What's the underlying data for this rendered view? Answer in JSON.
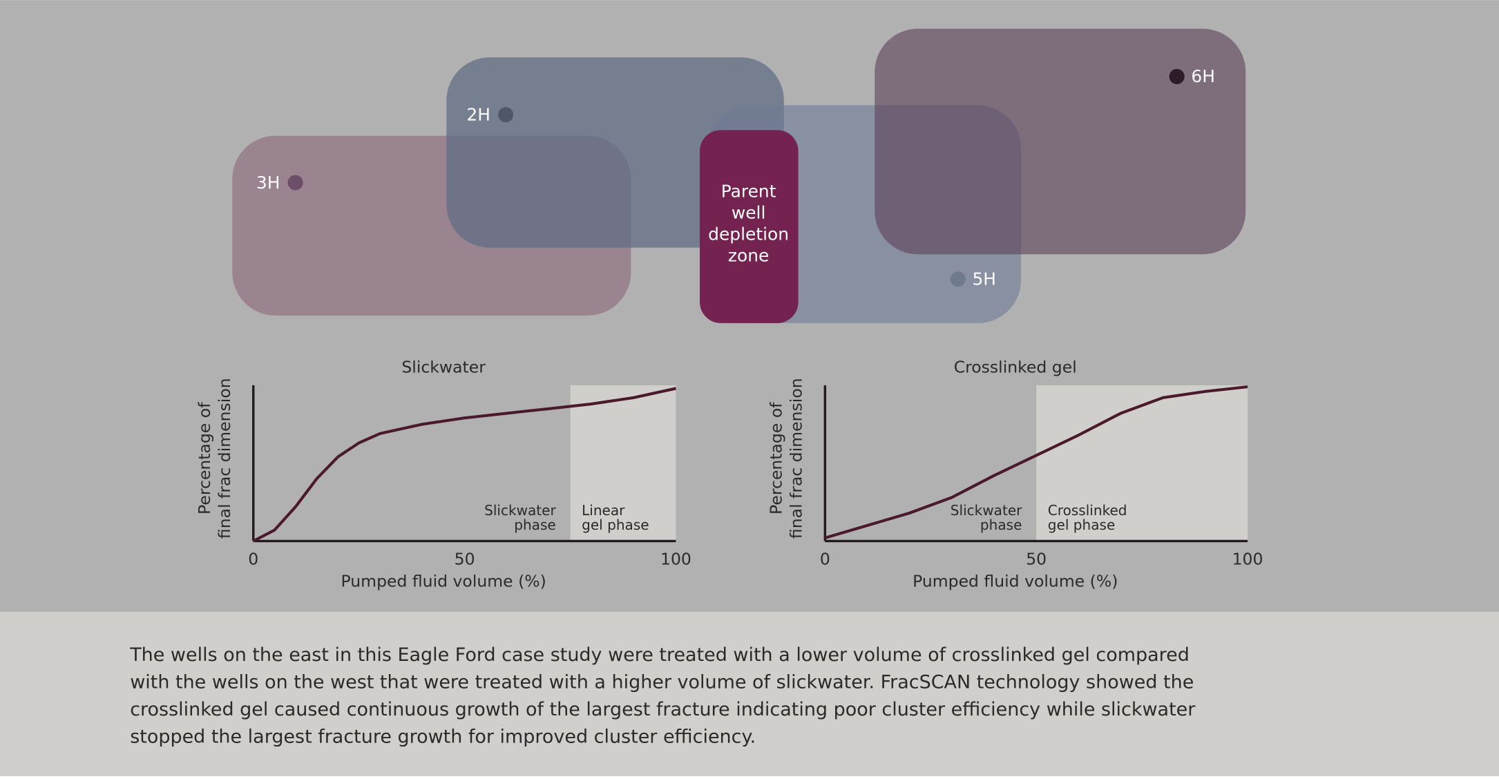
{
  "diagram": {
    "wells": [
      {
        "label": "3H"
      },
      {
        "label": "2H"
      },
      {
        "label": "5H"
      },
      {
        "label": "6H"
      }
    ],
    "parent_zone": {
      "lines": [
        "Parent",
        "well",
        "depletion",
        "zone"
      ]
    }
  },
  "chart_data": [
    {
      "type": "line",
      "title": "Slickwater",
      "x_label": "Pumped fluid volume (%)",
      "y_label": [
        "Percentage of",
        "final frac dimension"
      ],
      "x": [
        0,
        5,
        10,
        15,
        20,
        25,
        30,
        40,
        50,
        60,
        70,
        80,
        90,
        100
      ],
      "values": [
        0,
        7,
        22,
        40,
        54,
        63,
        69,
        75,
        79,
        82,
        85,
        88,
        92,
        98
      ],
      "color": "#4a1a2c",
      "xlim": [
        0,
        100
      ],
      "xticks": [
        0,
        50,
        100
      ],
      "ylim": [
        0,
        100
      ],
      "shade": [
        75,
        100
      ],
      "annotations": [
        {
          "lines": [
            "Slickwater",
            "phase"
          ]
        },
        {
          "lines": [
            "Linear",
            "gel phase"
          ]
        }
      ]
    },
    {
      "type": "line",
      "title": "Crosslinked gel",
      "x_label": "Pumped fluid volume (%)",
      "y_label": [
        "Percentage of",
        "final frac dimension"
      ],
      "x": [
        0,
        10,
        20,
        30,
        40,
        50,
        60,
        70,
        80,
        90,
        100
      ],
      "values": [
        2,
        10,
        18,
        28,
        42,
        55,
        68,
        82,
        92,
        96,
        99
      ],
      "color": "#4a1a2c",
      "xlim": [
        0,
        100
      ],
      "xticks": [
        0,
        50,
        100
      ],
      "ylim": [
        0,
        100
      ],
      "shade": [
        50,
        100
      ],
      "annotations": [
        {
          "lines": [
            "Slickwater",
            "phase"
          ]
        },
        {
          "lines": [
            "Crosslinked",
            "gel phase"
          ]
        }
      ]
    }
  ],
  "caption": {
    "lines": [
      "The wells on the east in this Eagle Ford case study were treated with a lower volume of crosslinked gel compared",
      "with the wells on the west that were treated with a higher volume of slickwater. FracSCAN technology showed the",
      "crosslinked gel caused continuous growth of the largest fracture indicating poor cluster efficiency while slickwater",
      "stopped the largest fracture growth for improved cluster efficiency."
    ]
  }
}
